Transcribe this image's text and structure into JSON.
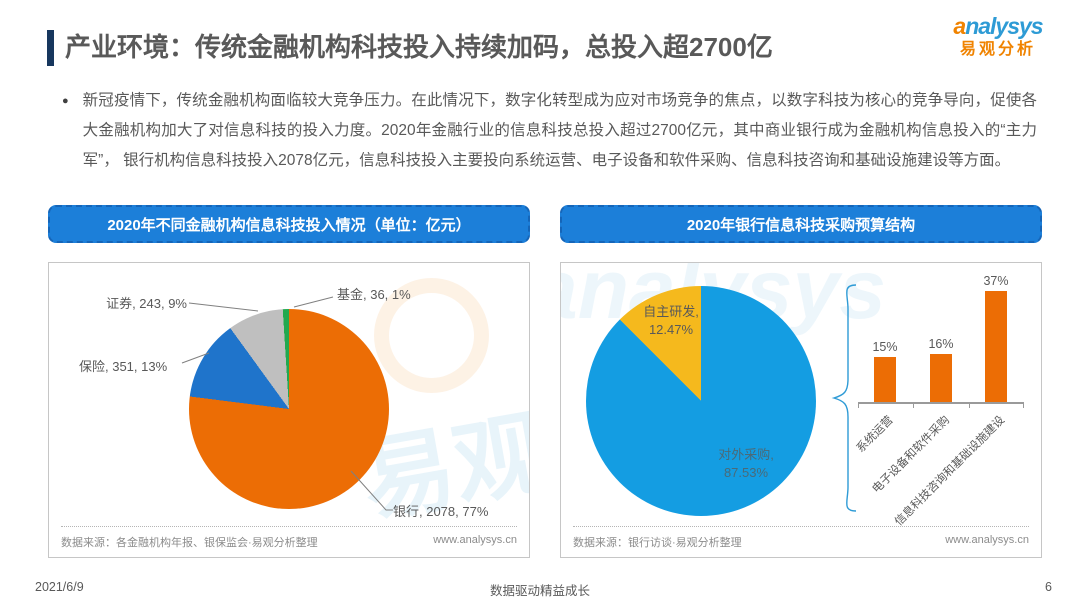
{
  "header": {
    "title": "产业环境：传统金融机构科技投入持续加码，总投入超2700亿",
    "logo": {
      "en_a": "a",
      "en_rest": "nalysys",
      "cn": "易观分析"
    }
  },
  "intro": {
    "bullet": "●",
    "text": "新冠疫情下，传统金融机构面临较大竞争压力。在此情况下，数字化转型成为应对市场竞争的焦点，以数字科技为核心的竞争导向，促使各大金融机构加大了对信息科技的投入力度。2020年金融行业的信息科技总投入超过2700亿元，其中商业银行成为金融机构信息投入的“主力军”， 银行机构信息科技投入2078亿元，信息科技投入主要投向系统运营、电子设备和软件采购、信息科技咨询和基础设施建设等方面。"
  },
  "chart_data": [
    {
      "type": "pie",
      "title": "2020年不同金融机构信息科技投入情况（单位：亿元）",
      "start": "top-clockwise",
      "slices": [
        {
          "label": "银行",
          "value": 2078,
          "pct": 77,
          "color": "#EC6D05",
          "data_label": "银行, 2078, 77%"
        },
        {
          "label": "保险",
          "value": 351,
          "pct": 13,
          "color": "#1F74CB",
          "data_label": "保险, 351, 13%"
        },
        {
          "label": "证券",
          "value": 243,
          "pct": 9,
          "color": "#BFBFBF",
          "data_label": "证券, 243, 9%"
        },
        {
          "label": "基金",
          "value": 36,
          "pct": 1,
          "color": "#22A94F",
          "data_label": "基金, 36, 1%"
        }
      ],
      "source": "数据来源：各金融机构年报、银保监会·易观分析整理",
      "website": "www.analysys.cn"
    },
    {
      "type": "pie",
      "title": "2020年银行信息科技采购预算结构",
      "start": "top-clockwise",
      "slices": [
        {
          "label": "对外采购",
          "pct": 87.53,
          "color": "#149DE2",
          "label_line1": "对外采购,",
          "label_line2": "87.53%"
        },
        {
          "label": "自主研发",
          "pct": 12.47,
          "color": "#F5B91D",
          "label_line1": "自主研发,",
          "label_line2": "12.47%"
        }
      ],
      "source": "数据来源：银行访谈·易观分析整理",
      "website": "www.analysys.cn"
    },
    {
      "type": "bar",
      "categories": [
        "系统运营",
        "电子设备和软件采购",
        "信息科技咨询和基础设施建设"
      ],
      "values": [
        15,
        16,
        37
      ],
      "value_labels": [
        "15%",
        "16%",
        "37%"
      ],
      "bar_color": "#EC6D05",
      "ylim": [
        0,
        40
      ],
      "grid": false
    }
  ],
  "watermark": {
    "en": "analysys",
    "cn": "易观"
  },
  "colors": {
    "banner_bg": "#1C7FD9",
    "banner_border": "#1565B8",
    "accent_bar": "#17375E",
    "title_text": "#595959"
  },
  "footer": {
    "date": "2021/6/9",
    "slogan": "数据驱动精益成长",
    "page": "6"
  }
}
